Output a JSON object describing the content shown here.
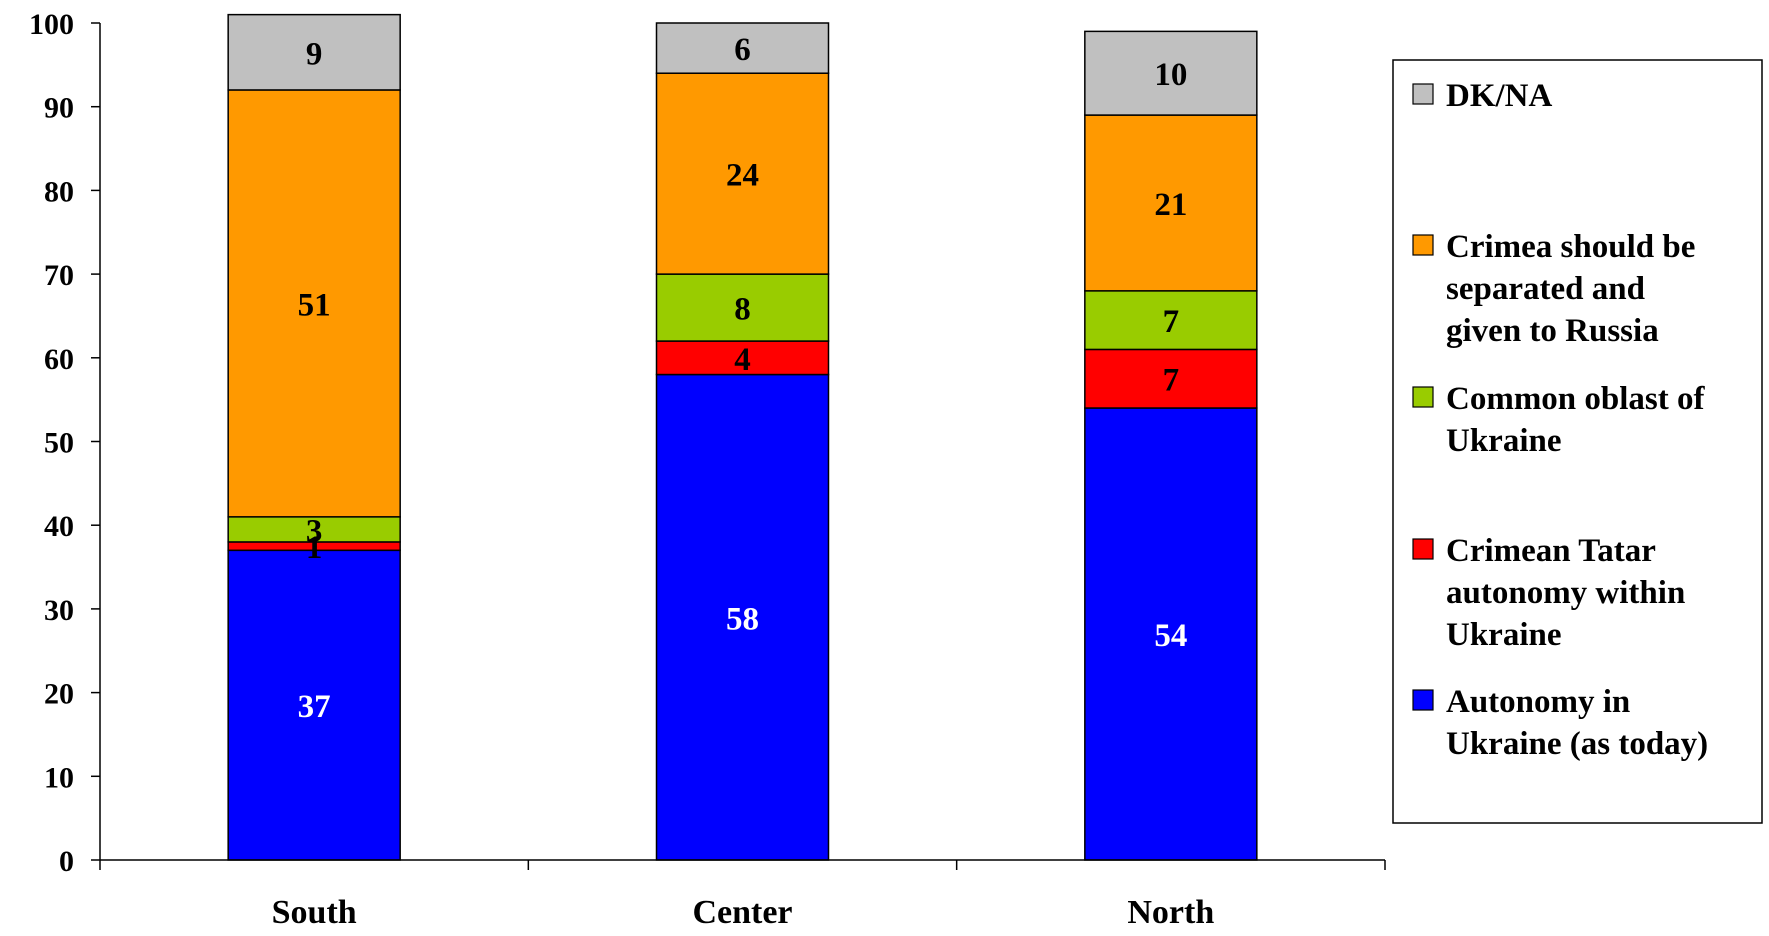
{
  "chart_data": {
    "type": "bar",
    "stacked": true,
    "categories": [
      "South",
      "Center",
      "North"
    ],
    "ylim": [
      0,
      100
    ],
    "yticks": [
      0,
      10,
      20,
      30,
      40,
      50,
      60,
      70,
      80,
      90,
      100
    ],
    "legend_position": "right",
    "series": [
      {
        "name": "Autonomy in Ukraine (as today)",
        "legend_lines": [
          "Autonomy in",
          "Ukraine (as today)"
        ],
        "color": "#0000FF",
        "label_color": "#FFFFFF",
        "values": [
          37,
          58,
          54
        ]
      },
      {
        "name": "Crimean Tatar autonomy within Ukraine",
        "legend_lines": [
          "Crimean Tatar",
          "autonomy within",
          "Ukraine"
        ],
        "color": "#FF0000",
        "label_color": "#000000",
        "values": [
          1,
          4,
          7
        ]
      },
      {
        "name": "Common oblast of Ukraine",
        "legend_lines": [
          "Common oblast of",
          "Ukraine"
        ],
        "color": "#99CC00",
        "label_color": "#000000",
        "values": [
          3,
          8,
          7
        ]
      },
      {
        "name": "Crimea should be separated and given to Russia",
        "legend_lines": [
          "Crimea should be",
          "separated and",
          "given to Russia"
        ],
        "color": "#FF9900",
        "label_color": "#000000",
        "values": [
          51,
          24,
          21
        ]
      },
      {
        "name": "DK/NA",
        "legend_lines": [
          "DK/NA"
        ],
        "color": "#C0C0C0",
        "label_color": "#000000",
        "values": [
          9,
          6,
          10
        ]
      }
    ]
  }
}
